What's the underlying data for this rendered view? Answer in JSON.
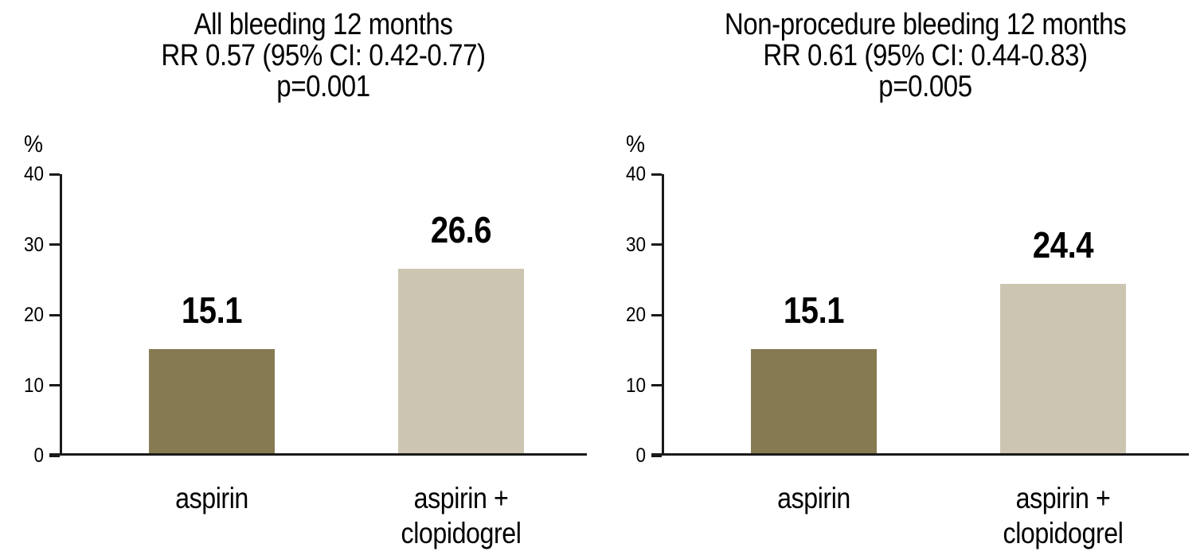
{
  "chart_data": [
    {
      "type": "bar",
      "title_lines": [
        "All bleeding 12 months",
        "RR 0.57 (95% CI: 0.42-0.77)",
        "p=0.001"
      ],
      "ylabel": "%",
      "xlabel": "",
      "ylim": [
        0,
        40
      ],
      "yticks": [
        40,
        30,
        20,
        10,
        0
      ],
      "categories": [
        "aspirin",
        "aspirin + clopidogrel"
      ],
      "categories_display": [
        "aspirin",
        "aspirin +\nclopidogrel"
      ],
      "values": [
        15.1,
        26.6
      ],
      "bar_colors": [
        "#857a52",
        "#ccc5b2"
      ],
      "grid": false,
      "legend": "none"
    },
    {
      "type": "bar",
      "title_lines": [
        "Non-procedure bleeding 12 months",
        "RR 0.61 (95% CI: 0.44-0.83)",
        "p=0.005"
      ],
      "ylabel": "%",
      "xlabel": "",
      "ylim": [
        0,
        40
      ],
      "yticks": [
        40,
        30,
        20,
        10,
        0
      ],
      "categories": [
        "aspirin",
        "aspirin + clopidogrel"
      ],
      "categories_display": [
        "aspirin",
        "aspirin +\nclopidogrel"
      ],
      "values": [
        15.1,
        24.4
      ],
      "bar_colors": [
        "#857a52",
        "#ccc5b2"
      ],
      "grid": false,
      "legend": "none"
    }
  ],
  "colors": {
    "background": "#ffffff",
    "text": "#000000",
    "axis": "#1a1a1a",
    "bar_dark": "#857a52",
    "bar_light": "#ccc5b2"
  }
}
